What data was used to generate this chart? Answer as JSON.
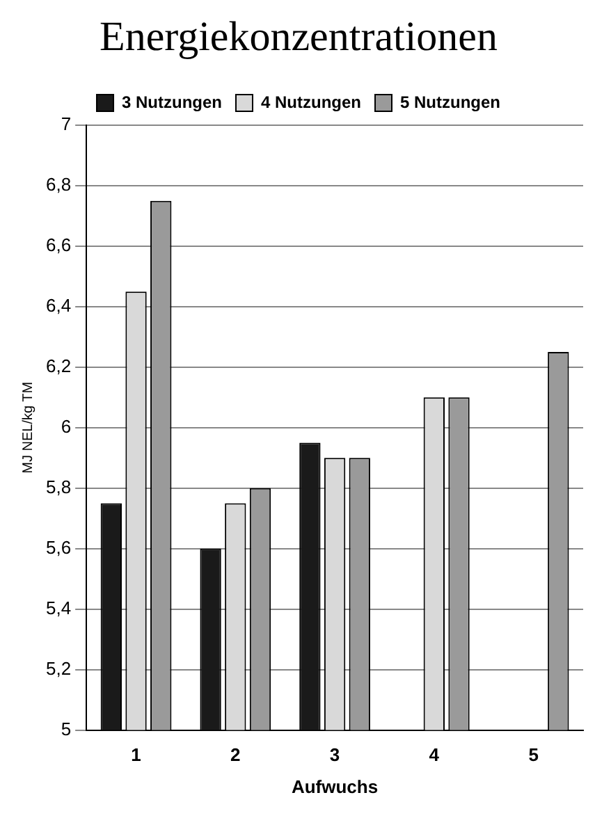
{
  "chart_data": {
    "type": "bar",
    "title": "Energiekonzentrationen",
    "xlabel": "Aufwuchs",
    "ylabel": "MJ NEL/kg TM",
    "categories": [
      "1",
      "2",
      "3",
      "4",
      "5"
    ],
    "series": [
      {
        "name": "3 Nutzungen",
        "color": "#1a1a1a",
        "values": [
          5.75,
          5.6,
          5.95,
          null,
          null
        ]
      },
      {
        "name": "4 Nutzungen",
        "color": "#d9d9d9",
        "values": [
          6.45,
          5.75,
          5.9,
          6.1,
          null
        ]
      },
      {
        "name": "5 Nutzungen",
        "color": "#9a9a9a",
        "values": [
          6.75,
          5.8,
          5.9,
          6.1,
          6.25
        ]
      }
    ],
    "ylim": [
      5,
      7
    ],
    "yticks": [
      5,
      {
        "value": 5.2,
        "label": "5,2"
      },
      {
        "value": 5.4,
        "label": "5,4"
      },
      {
        "value": 5.6,
        "label": "5,6"
      },
      {
        "value": 5.8,
        "label": "5,8"
      },
      6,
      {
        "value": 6.2,
        "label": "6,2"
      },
      {
        "value": 6.4,
        "label": "6,4"
      },
      {
        "value": 6.6,
        "label": "6,6"
      },
      {
        "value": 6.8,
        "label": "6,8"
      },
      7
    ],
    "grid": "y",
    "legend": "top"
  }
}
